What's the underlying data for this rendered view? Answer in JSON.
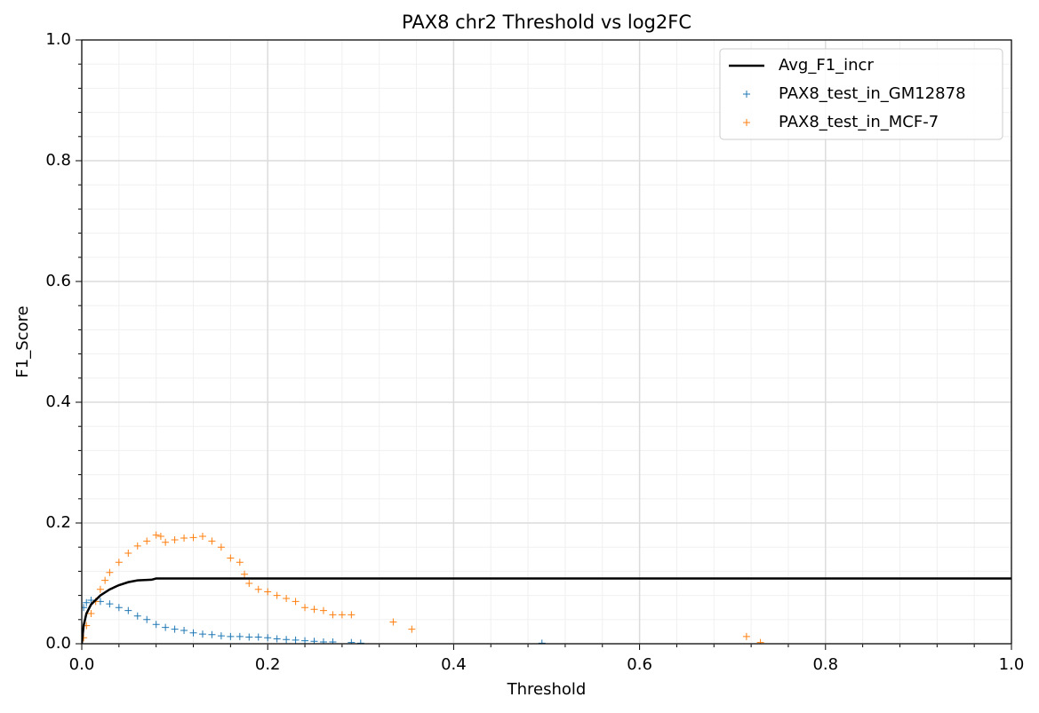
{
  "chart_data": {
    "type": "scatter",
    "title": "PAX8 chr2 Threshold vs log2FC",
    "x_label": "Threshold",
    "y_label": "F1_Score",
    "xlim": [
      0.0,
      1.0
    ],
    "ylim": [
      0.0,
      1.0
    ],
    "xticks": [
      {
        "value": 0,
        "label": "0.0"
      },
      0.2,
      0.4,
      0.6,
      0.8,
      {
        "value": 1,
        "label": "1.0"
      }
    ],
    "yticks": [
      {
        "value": 0,
        "label": "0.0"
      },
      0.2,
      0.4,
      0.6,
      0.8,
      {
        "value": 1,
        "label": "1.0"
      }
    ],
    "grid": true,
    "minor_grid": true,
    "legend": "upper-right",
    "series": [
      {
        "name": "Avg_F1_incr",
        "color": "#000000",
        "kind": "line",
        "x": [
          0,
          0.002,
          0.005,
          0.01,
          0.02,
          0.03,
          0.04,
          0.05,
          0.06,
          0.075,
          0.08,
          1.0
        ],
        "values": [
          0,
          0.03,
          0.05,
          0.065,
          0.08,
          0.09,
          0.097,
          0.102,
          0.105,
          0.106,
          0.108,
          0.108
        ]
      },
      {
        "name": "PAX8_test_in_GM12878",
        "color": "#1f77b4",
        "kind": "marker",
        "x": [
          0.002,
          0.005,
          0.01,
          0.02,
          0.03,
          0.04,
          0.05,
          0.06,
          0.07,
          0.08,
          0.09,
          0.1,
          0.11,
          0.12,
          0.13,
          0.14,
          0.15,
          0.16,
          0.17,
          0.18,
          0.19,
          0.2,
          0.21,
          0.22,
          0.23,
          0.24,
          0.25,
          0.26,
          0.27,
          0.29,
          0.3,
          0.495
        ],
        "values": [
          0.06,
          0.068,
          0.072,
          0.07,
          0.066,
          0.06,
          0.055,
          0.046,
          0.04,
          0.032,
          0.027,
          0.024,
          0.022,
          0.018,
          0.016,
          0.015,
          0.013,
          0.012,
          0.012,
          0.011,
          0.011,
          0.01,
          0.008,
          0.007,
          0.006,
          0.005,
          0.004,
          0.003,
          0.003,
          0.002,
          0.001,
          0.001
        ]
      },
      {
        "name": "PAX8_test_in_MCF-7",
        "color": "#ff7f0e",
        "kind": "marker",
        "x": [
          0.002,
          0.005,
          0.01,
          0.015,
          0.02,
          0.025,
          0.03,
          0.04,
          0.05,
          0.06,
          0.07,
          0.08,
          0.085,
          0.09,
          0.1,
          0.11,
          0.12,
          0.13,
          0.14,
          0.15,
          0.16,
          0.17,
          0.175,
          0.18,
          0.19,
          0.2,
          0.21,
          0.22,
          0.23,
          0.24,
          0.25,
          0.26,
          0.27,
          0.28,
          0.29,
          0.335,
          0.355,
          0.715,
          0.73
        ],
        "values": [
          0.01,
          0.03,
          0.05,
          0.07,
          0.09,
          0.105,
          0.118,
          0.135,
          0.15,
          0.162,
          0.17,
          0.18,
          0.178,
          0.168,
          0.172,
          0.175,
          0.176,
          0.178,
          0.17,
          0.16,
          0.142,
          0.135,
          0.115,
          0.1,
          0.09,
          0.086,
          0.08,
          0.075,
          0.07,
          0.06,
          0.057,
          0.055,
          0.048,
          0.048,
          0.048,
          0.036,
          0.024,
          0.012,
          0.002
        ]
      }
    ]
  }
}
